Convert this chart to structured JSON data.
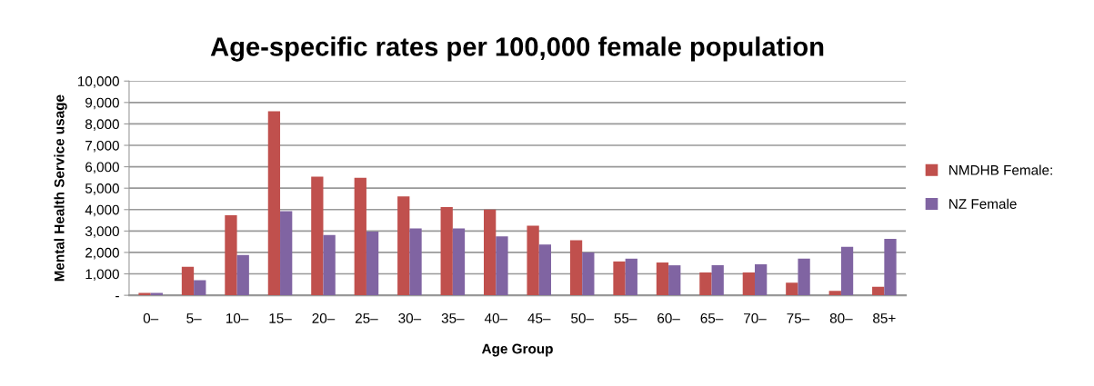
{
  "chart_data": {
    "type": "bar",
    "title": "Age-specific rates per 100,000 female population",
    "xlabel": "Age Group",
    "ylabel": "Mental Health Service usage",
    "categories": [
      "0–",
      "5–",
      "10–",
      "15–",
      "20–",
      "25–",
      "30–",
      "35–",
      "40–",
      "45–",
      "50–",
      "55–",
      "60–",
      "65–",
      "70–",
      "75–",
      "80–",
      "85+"
    ],
    "series": [
      {
        "name": "NMDHB Female:",
        "color": "#c0504d",
        "values": [
          110,
          1330,
          3740,
          8590,
          5540,
          5480,
          4620,
          4120,
          4000,
          3250,
          2570,
          1580,
          1530,
          1070,
          1070,
          590,
          210,
          400
        ]
      },
      {
        "name": "NZ Female",
        "color": "#8064a2",
        "values": [
          110,
          710,
          1880,
          3930,
          2810,
          2970,
          3120,
          3120,
          2750,
          2370,
          2000,
          1710,
          1400,
          1400,
          1450,
          1710,
          2260,
          2630
        ]
      }
    ],
    "ylim": [
      0,
      10000
    ],
    "yticks": [
      {
        "value": 0,
        "label": "-"
      },
      {
        "value": 1000,
        "label": "1,000"
      },
      {
        "value": 2000,
        "label": "2,000"
      },
      {
        "value": 3000,
        "label": "3,000"
      },
      {
        "value": 4000,
        "label": "4,000"
      },
      {
        "value": 5000,
        "label": "5,000"
      },
      {
        "value": 6000,
        "label": "6,000"
      },
      {
        "value": 7000,
        "label": "7,000"
      },
      {
        "value": 8000,
        "label": "8,000"
      },
      {
        "value": 9000,
        "label": "9,000"
      },
      {
        "value": 10000,
        "label": "10,000"
      }
    ],
    "grid": "y",
    "legend": "right"
  }
}
